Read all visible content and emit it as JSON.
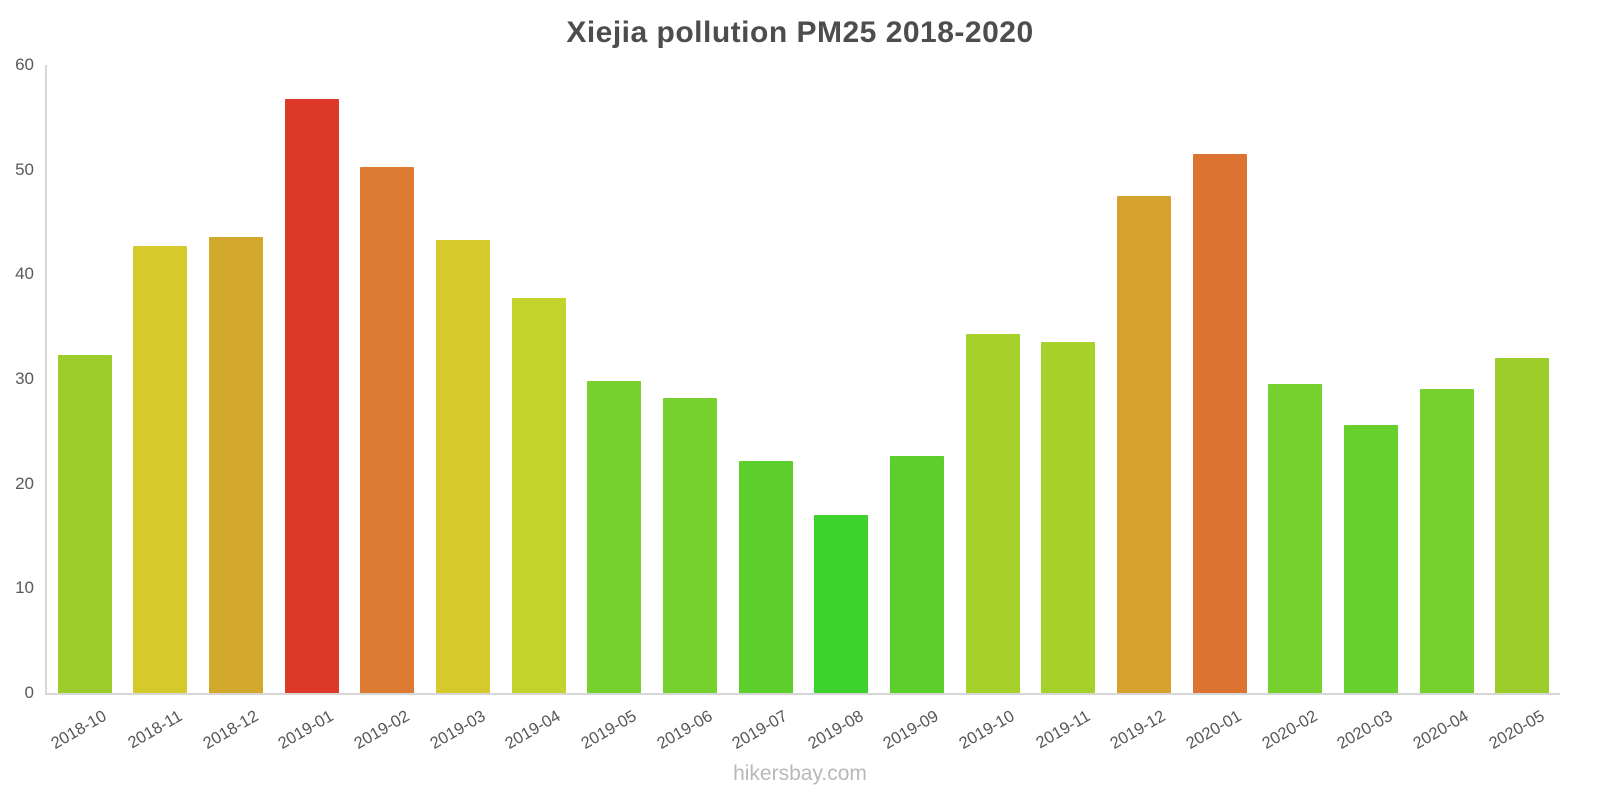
{
  "chart_data": {
    "type": "bar",
    "title": "Xiejia pollution PM25 2018-2020",
    "xlabel": "",
    "ylabel": "",
    "ylim": [
      0,
      60
    ],
    "yticks": [
      0,
      10,
      20,
      30,
      40,
      50,
      60
    ],
    "grid": false,
    "legend": false,
    "categories": [
      "2018-10",
      "2018-11",
      "2018-12",
      "2019-01",
      "2019-02",
      "2019-03",
      "2019-04",
      "2019-05",
      "2019-06",
      "2019-07",
      "2019-08",
      "2019-09",
      "2019-10",
      "2019-11",
      "2019-12",
      "2020-01",
      "2020-02",
      "2020-03",
      "2020-04",
      "2020-05"
    ],
    "values": [
      32.3,
      42.7,
      43.6,
      56.8,
      50.3,
      43.3,
      37.7,
      29.8,
      28.2,
      22.2,
      17.0,
      22.6,
      34.3,
      33.5,
      47.5,
      51.5,
      29.5,
      25.6,
      29.0,
      32.0
    ],
    "colors": [
      "#9ccd2b",
      "#d5c92b",
      "#d2a92d",
      "#dc392b",
      "#dc7a31",
      "#d5c92b",
      "#c3d32b",
      "#76d02d",
      "#76d02d",
      "#5ccf2d",
      "#3ed32c",
      "#5ccf2d",
      "#a6d02a",
      "#a6d02a",
      "#d5a22e",
      "#dc7330",
      "#76d02d",
      "#68d02d",
      "#76d02d",
      "#9ccd2b"
    ],
    "axis_color": "#d6d6d6",
    "tick_label_color": "#595959",
    "title_color": "#4d4d4d"
  },
  "footer": {
    "watermark": "hikersbay.com"
  }
}
